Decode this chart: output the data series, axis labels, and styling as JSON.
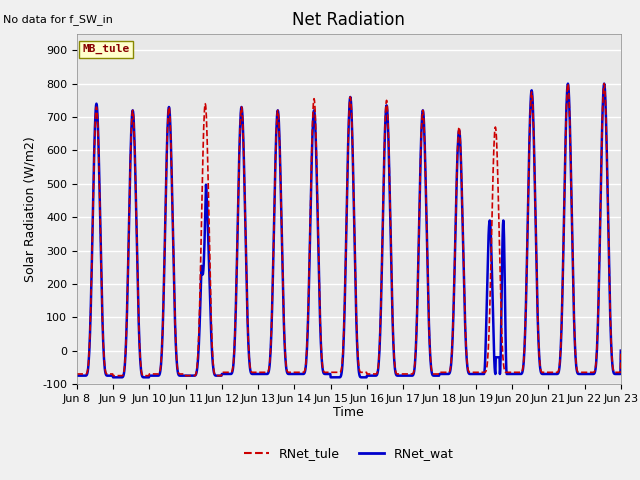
{
  "title": "Net Radiation",
  "xlabel": "Time",
  "ylabel": "Solar Radiation (W/m2)",
  "ylim": [
    -100,
    950
  ],
  "xlim": [
    0,
    360
  ],
  "bg_color": "#e8e8e8",
  "fig_color": "#f0f0f0",
  "grid_color": "white",
  "line1_color": "#cc0000",
  "line2_color": "#0000cc",
  "line1_label": "RNet_tule",
  "line2_label": "RNet_wat",
  "line1_style": "--",
  "line2_style": "-",
  "line1_lw": 1.2,
  "line2_lw": 1.8,
  "title_fontsize": 12,
  "label_fontsize": 9,
  "tick_fontsize": 8,
  "no_data_text": "No data for f_SW_in",
  "mb_tule_text": "MB_tule",
  "xtick_positions": [
    0,
    24,
    48,
    72,
    96,
    120,
    144,
    168,
    192,
    216,
    240,
    264,
    288,
    312,
    336,
    360
  ],
  "xtick_labels": [
    "Jun 8",
    "Jun 9",
    "Jun 10",
    "Jun 11",
    "Jun 12",
    "Jun 13",
    "Jun 14",
    "Jun 15",
    "Jun 16",
    "Jun 17",
    "Jun 18",
    "Jun 19",
    "Jun 20",
    "Jun 21",
    "Jun 22",
    "Jun 23"
  ],
  "ytick_positions": [
    -100,
    0,
    100,
    200,
    300,
    400,
    500,
    600,
    700,
    800,
    900
  ],
  "peak_tule": [
    730,
    720,
    730,
    740,
    730,
    720,
    755,
    760,
    750,
    720,
    670,
    670,
    775,
    800,
    800
  ],
  "peak_wat": [
    740,
    720,
    730,
    510,
    730,
    720,
    720,
    760,
    735,
    720,
    660,
    390,
    780,
    800,
    800
  ],
  "trough_tule": [
    -70,
    -75,
    -70,
    -75,
    -65,
    -65,
    -65,
    -65,
    -70,
    -70,
    -65,
    -65,
    -65,
    -65,
    -65
  ],
  "trough_wat": [
    -75,
    -80,
    -75,
    -75,
    -70,
    -70,
    -70,
    -80,
    -75,
    -75,
    -70,
    -70,
    -70,
    -70,
    -70
  ],
  "hour_rise": 5.5,
  "hour_set": 20.5,
  "sharpness": 4.0
}
